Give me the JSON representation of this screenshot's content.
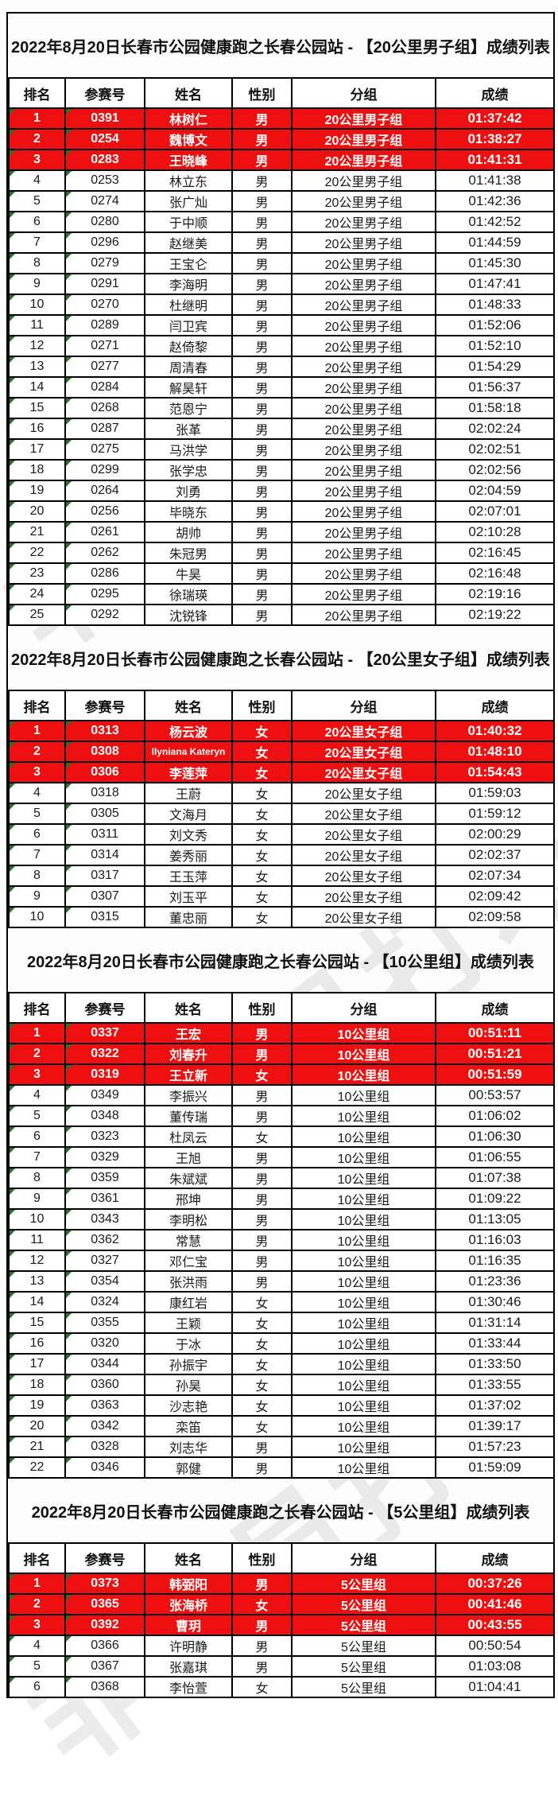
{
  "page": {
    "watermark": "非会员打印",
    "colors": {
      "highlight_background": "#ee1010",
      "highlight_text": "#ffffff",
      "marker_green": "#1f7a1f",
      "border": "#000000"
    },
    "columns": [
      "排名",
      "参赛号",
      "姓名",
      "性别",
      "分组",
      "成绩"
    ],
    "sections": [
      {
        "title": "2022年8月20日长春市公园健康跑之长春公园站 - 【20公里男子组】成绩列表",
        "rows": [
          [
            "1",
            "0391",
            "林树仁",
            "男",
            "20公里男子组",
            "01:37:42"
          ],
          [
            "2",
            "0254",
            "魏博文",
            "男",
            "20公里男子组",
            "01:38:27"
          ],
          [
            "3",
            "0283",
            "王晓峰",
            "男",
            "20公里男子组",
            "01:41:31"
          ],
          [
            "4",
            "0253",
            "林立东",
            "男",
            "20公里男子组",
            "01:41:38"
          ],
          [
            "5",
            "0274",
            "张广灿",
            "男",
            "20公里男子组",
            "01:42:36"
          ],
          [
            "6",
            "0280",
            "于中顺",
            "男",
            "20公里男子组",
            "01:42:52"
          ],
          [
            "7",
            "0296",
            "赵继美",
            "男",
            "20公里男子组",
            "01:44:59"
          ],
          [
            "8",
            "0279",
            "王宝仑",
            "男",
            "20公里男子组",
            "01:45:30"
          ],
          [
            "9",
            "0291",
            "李海明",
            "男",
            "20公里男子组",
            "01:47:41"
          ],
          [
            "10",
            "0270",
            "杜继明",
            "男",
            "20公里男子组",
            "01:48:33"
          ],
          [
            "11",
            "0289",
            "闫卫宾",
            "男",
            "20公里男子组",
            "01:52:06"
          ],
          [
            "12",
            "0271",
            "赵倚黎",
            "男",
            "20公里男子组",
            "01:52:10"
          ],
          [
            "13",
            "0277",
            "周清春",
            "男",
            "20公里男子组",
            "01:54:29"
          ],
          [
            "14",
            "0284",
            "解昊轩",
            "男",
            "20公里男子组",
            "01:56:37"
          ],
          [
            "15",
            "0268",
            "范恩宁",
            "男",
            "20公里男子组",
            "01:58:18"
          ],
          [
            "16",
            "0287",
            "张革",
            "男",
            "20公里男子组",
            "02:02:24"
          ],
          [
            "17",
            "0275",
            "马洪学",
            "男",
            "20公里男子组",
            "02:02:51"
          ],
          [
            "18",
            "0299",
            "张学忠",
            "男",
            "20公里男子组",
            "02:02:56"
          ],
          [
            "19",
            "0264",
            "刘勇",
            "男",
            "20公里男子组",
            "02:04:59"
          ],
          [
            "20",
            "0256",
            "毕晓东",
            "男",
            "20公里男子组",
            "02:07:01"
          ],
          [
            "21",
            "0261",
            "胡帅",
            "男",
            "20公里男子组",
            "02:10:28"
          ],
          [
            "22",
            "0262",
            "朱冠男",
            "男",
            "20公里男子组",
            "02:16:45"
          ],
          [
            "23",
            "0286",
            "牛昊",
            "男",
            "20公里男子组",
            "02:16:48"
          ],
          [
            "24",
            "0295",
            "徐瑞瑛",
            "男",
            "20公里男子组",
            "02:19:16"
          ],
          [
            "25",
            "0292",
            "沈锐锋",
            "男",
            "20公里男子组",
            "02:19:22"
          ]
        ]
      },
      {
        "title": "2022年8月20日长春市公园健康跑之长春公园站 - 【20公里女子组】成绩列表",
        "rows": [
          [
            "1",
            "0313",
            "杨云波",
            "女",
            "20公里女子组",
            "01:40:32"
          ],
          [
            "2",
            "0308",
            "Ilyniana Kateryn",
            "女",
            "20公里女子组",
            "01:48:10"
          ],
          [
            "3",
            "0306",
            "李莲萍",
            "女",
            "20公里女子组",
            "01:54:43"
          ],
          [
            "4",
            "0318",
            "王蔚",
            "女",
            "20公里女子组",
            "01:59:03"
          ],
          [
            "5",
            "0305",
            "文海月",
            "女",
            "20公里女子组",
            "01:59:12"
          ],
          [
            "6",
            "0311",
            "刘文秀",
            "女",
            "20公里女子组",
            "02:00:29"
          ],
          [
            "7",
            "0314",
            "姜秀丽",
            "女",
            "20公里女子组",
            "02:02:37"
          ],
          [
            "8",
            "0317",
            "王玉萍",
            "女",
            "20公里女子组",
            "02:07:34"
          ],
          [
            "9",
            "0307",
            "刘玉平",
            "女",
            "20公里女子组",
            "02:09:42"
          ],
          [
            "10",
            "0315",
            "董忠丽",
            "女",
            "20公里女子组",
            "02:09:58"
          ]
        ]
      },
      {
        "title": "2022年8月20日长春市公园健康跑之长春公园站 - 【10公里组】成绩列表",
        "rows": [
          [
            "1",
            "0337",
            "王宏",
            "男",
            "10公里组",
            "00:51:11"
          ],
          [
            "2",
            "0322",
            "刘春升",
            "男",
            "10公里组",
            "00:51:21"
          ],
          [
            "3",
            "0319",
            "王立新",
            "女",
            "10公里组",
            "00:51:59"
          ],
          [
            "4",
            "0349",
            "李振兴",
            "男",
            "10公里组",
            "00:53:57"
          ],
          [
            "5",
            "0348",
            "董传瑞",
            "男",
            "10公里组",
            "01:06:02"
          ],
          [
            "6",
            "0323",
            "杜凤云",
            "女",
            "10公里组",
            "01:06:30"
          ],
          [
            "7",
            "0329",
            "王旭",
            "男",
            "10公里组",
            "01:06:55"
          ],
          [
            "8",
            "0359",
            "朱斌斌",
            "男",
            "10公里组",
            "01:07:38"
          ],
          [
            "9",
            "0361",
            "邢坤",
            "男",
            "10公里组",
            "01:09:22"
          ],
          [
            "10",
            "0343",
            "李明松",
            "男",
            "10公里组",
            "01:13:05"
          ],
          [
            "11",
            "0362",
            "常慧",
            "男",
            "10公里组",
            "01:16:03"
          ],
          [
            "12",
            "0327",
            "邓仁宝",
            "男",
            "10公里组",
            "01:16:35"
          ],
          [
            "13",
            "0354",
            "张洪雨",
            "男",
            "10公里组",
            "01:23:36"
          ],
          [
            "14",
            "0324",
            "康红岩",
            "女",
            "10公里组",
            "01:30:46"
          ],
          [
            "15",
            "0355",
            "王颖",
            "女",
            "10公里组",
            "01:31:14"
          ],
          [
            "16",
            "0320",
            "于冰",
            "女",
            "10公里组",
            "01:33:44"
          ],
          [
            "17",
            "0344",
            "孙振宇",
            "女",
            "10公里组",
            "01:33:50"
          ],
          [
            "18",
            "0360",
            "孙昊",
            "女",
            "10公里组",
            "01:33:55"
          ],
          [
            "19",
            "0363",
            "沙志艳",
            "女",
            "10公里组",
            "01:37:02"
          ],
          [
            "20",
            "0342",
            "栾笛",
            "女",
            "10公里组",
            "01:39:17"
          ],
          [
            "21",
            "0328",
            "刘志华",
            "男",
            "10公里组",
            "01:57:23"
          ],
          [
            "22",
            "0346",
            "郭健",
            "男",
            "10公里组",
            "01:59:09"
          ]
        ]
      },
      {
        "title": "2022年8月20日长春市公园健康跑之长春公园站 - 【5公里组】成绩列表",
        "rows": [
          [
            "1",
            "0373",
            "韩弼阳",
            "男",
            "5公里组",
            "00:37:26"
          ],
          [
            "2",
            "0365",
            "张海桥",
            "女",
            "5公里组",
            "00:41:46"
          ],
          [
            "3",
            "0392",
            "曹玥",
            "男",
            "5公里组",
            "00:43:55"
          ],
          [
            "4",
            "0366",
            "许明静",
            "男",
            "5公里组",
            "00:50:54"
          ],
          [
            "5",
            "0367",
            "张嘉琪",
            "男",
            "5公里组",
            "01:03:08"
          ],
          [
            "6",
            "0368",
            "李怡萱",
            "女",
            "5公里组",
            "01:04:41"
          ]
        ]
      }
    ]
  }
}
